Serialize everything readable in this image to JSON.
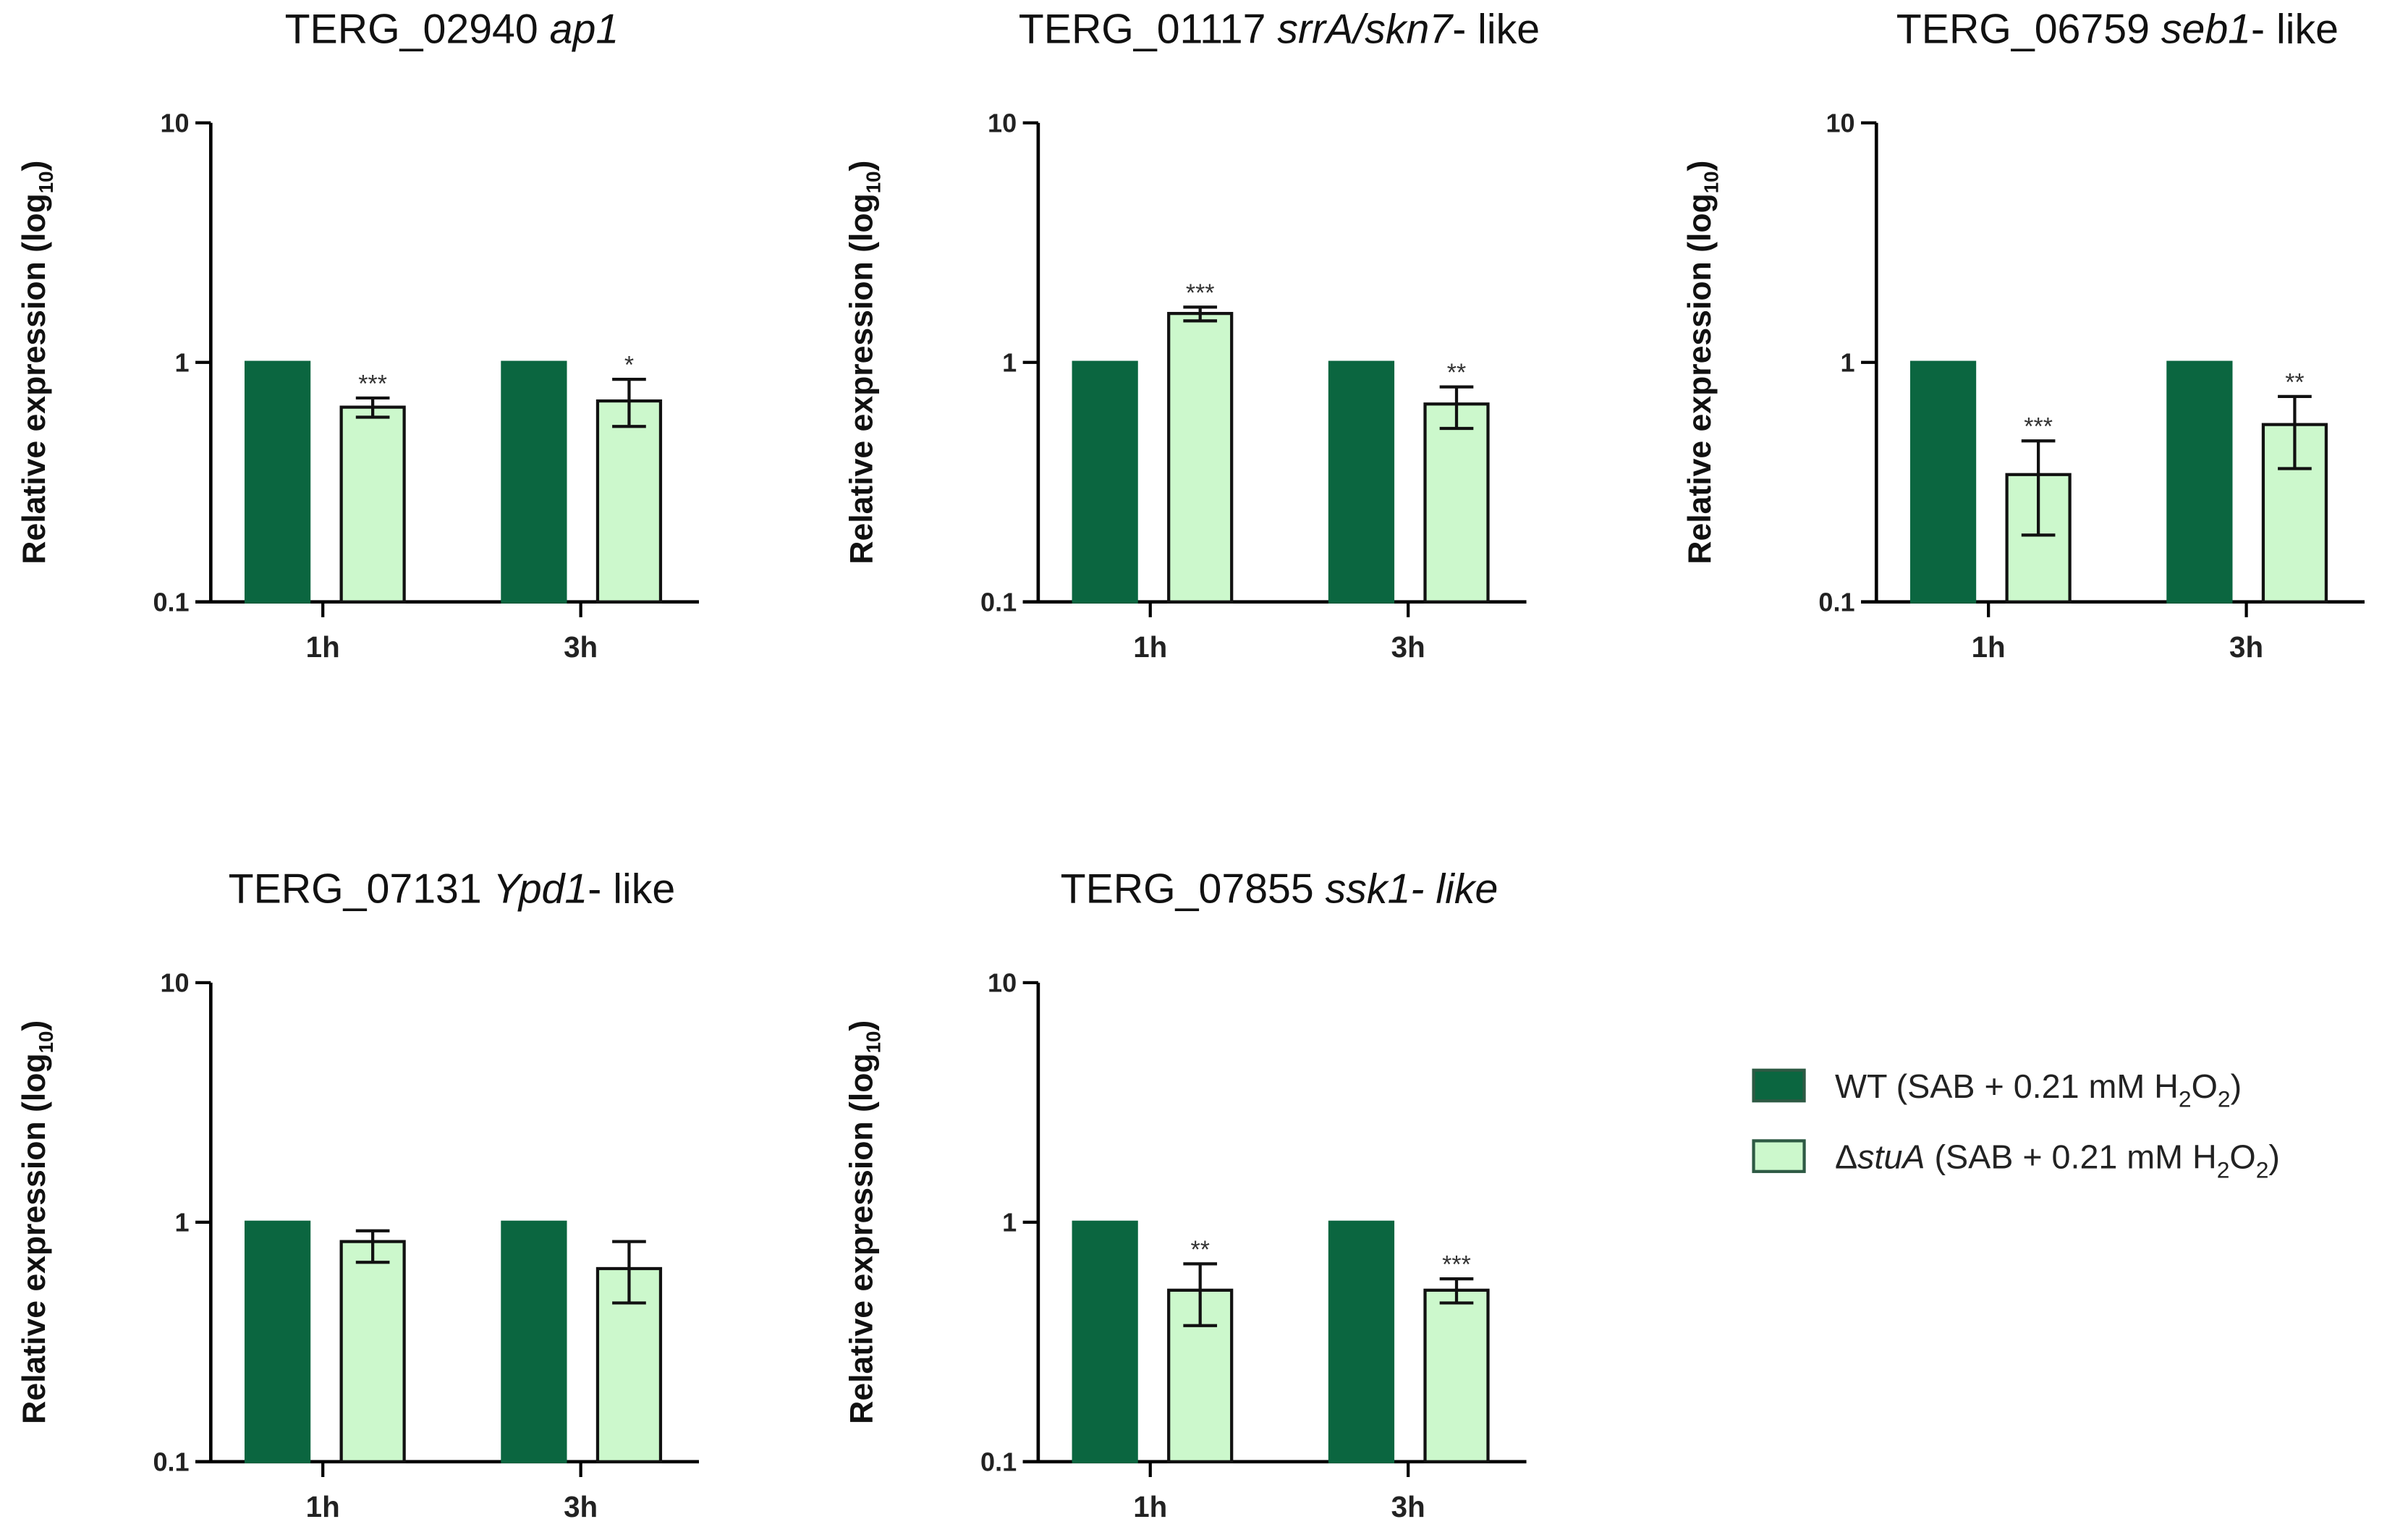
{
  "chart_data": [
    {
      "type": "bar",
      "title_parts": [
        {
          "t": "TERG_02940 ",
          "i": false
        },
        {
          "t": "ap1",
          "i": true
        }
      ],
      "categories": [
        "1h",
        "3h"
      ],
      "yscale": "log",
      "ylim": [
        0.1,
        10
      ],
      "yticks": [
        "0.1",
        "1",
        "10"
      ],
      "ylabel_parts": [
        "Relative expression (log",
        "10",
        ")"
      ],
      "series": [
        {
          "name": "WT",
          "values": [
            1,
            1
          ]
        },
        {
          "name": "ΔstuA",
          "values": [
            0.65,
            0.69
          ],
          "err_low": [
            0.59,
            0.54
          ],
          "err_high": [
            0.71,
            0.85
          ]
        }
      ],
      "annotations": [
        "***",
        "*"
      ]
    },
    {
      "type": "bar",
      "title_parts": [
        {
          "t": "TERG_01117 ",
          "i": false
        },
        {
          "t": "srrA/skn7",
          "i": true
        },
        {
          "t": "- like",
          "i": false
        }
      ],
      "categories": [
        "1h",
        "3h"
      ],
      "yscale": "log",
      "ylim": [
        0.1,
        10
      ],
      "yticks": [
        "0.1",
        "1",
        "10"
      ],
      "ylabel_parts": [
        "Relative expression (log",
        "10",
        ")"
      ],
      "series": [
        {
          "name": "WT",
          "values": [
            1,
            1
          ]
        },
        {
          "name": "ΔstuA",
          "values": [
            1.6,
            0.67
          ],
          "err_low": [
            1.49,
            0.53
          ],
          "err_high": [
            1.7,
            0.79
          ]
        }
      ],
      "annotations": [
        "***",
        "**"
      ]
    },
    {
      "type": "bar",
      "title_parts": [
        {
          "t": "TERG_06759 ",
          "i": false
        },
        {
          "t": "seb1",
          "i": true
        },
        {
          "t": "- like",
          "i": false
        }
      ],
      "categories": [
        "1h",
        "3h"
      ],
      "yscale": "log",
      "ylim": [
        0.1,
        10
      ],
      "yticks": [
        "0.1",
        "1",
        "10"
      ],
      "ylabel_parts": [
        "Relative expression (log",
        "10",
        ")"
      ],
      "series": [
        {
          "name": "WT",
          "values": [
            1,
            1
          ]
        },
        {
          "name": "ΔstuA",
          "values": [
            0.34,
            0.55
          ],
          "err_low": [
            0.19,
            0.36
          ],
          "err_high": [
            0.47,
            0.72
          ]
        }
      ],
      "annotations": [
        "***",
        "**"
      ]
    },
    {
      "type": "bar",
      "title_parts": [
        {
          "t": "TERG_07131 ",
          "i": false
        },
        {
          "t": "Ypd1",
          "i": true
        },
        {
          "t": "- like",
          "i": false
        }
      ],
      "categories": [
        "1h",
        "3h"
      ],
      "yscale": "log",
      "ylim": [
        0.1,
        10
      ],
      "yticks": [
        "0.1",
        "1",
        "10"
      ],
      "ylabel_parts": [
        "Relative expression (log",
        "10",
        ")"
      ],
      "series": [
        {
          "name": "WT",
          "values": [
            1,
            1
          ]
        },
        {
          "name": "ΔstuA",
          "values": [
            0.83,
            0.64
          ],
          "err_low": [
            0.68,
            0.46
          ],
          "err_high": [
            0.92,
            0.83
          ]
        }
      ],
      "annotations": [
        "",
        ""
      ]
    },
    {
      "type": "bar",
      "title_parts": [
        {
          "t": "TERG_07855 ",
          "i": false
        },
        {
          "t": "ssk1- like",
          "i": true
        }
      ],
      "categories": [
        "1h",
        "3h"
      ],
      "yscale": "log",
      "ylim": [
        0.1,
        10
      ],
      "yticks": [
        "0.1",
        "1",
        "10"
      ],
      "ylabel_parts": [
        "Relative expression (log",
        "10",
        ")"
      ],
      "series": [
        {
          "name": "WT",
          "values": [
            1,
            1
          ]
        },
        {
          "name": "ΔstuA",
          "values": [
            0.52,
            0.52
          ],
          "err_low": [
            0.37,
            0.46
          ],
          "err_high": [
            0.67,
            0.58
          ]
        }
      ],
      "annotations": [
        "**",
        "***"
      ]
    }
  ],
  "legend": {
    "placement": "right",
    "items": [
      {
        "color": "#0b6640",
        "parts": [
          {
            "t": "WT (SAB + 0.21 mM H",
            "s": false
          },
          {
            "t": "2",
            "s": true
          },
          {
            "t": "O",
            "s": false
          },
          {
            "t": "2",
            "s": true
          },
          {
            "t": ")",
            "s": false
          }
        ]
      },
      {
        "color": "#ccf8cc",
        "parts": [
          {
            "t": "Δ",
            "s": false
          },
          {
            "t": "stuA",
            "s": false,
            "i": true
          },
          {
            "t": " (SAB + 0.21 mM H",
            "s": false
          },
          {
            "t": "2",
            "s": true
          },
          {
            "t": "O",
            "s": false
          },
          {
            "t": "2",
            "s": true
          },
          {
            "t": ")",
            "s": false
          }
        ]
      }
    ]
  }
}
